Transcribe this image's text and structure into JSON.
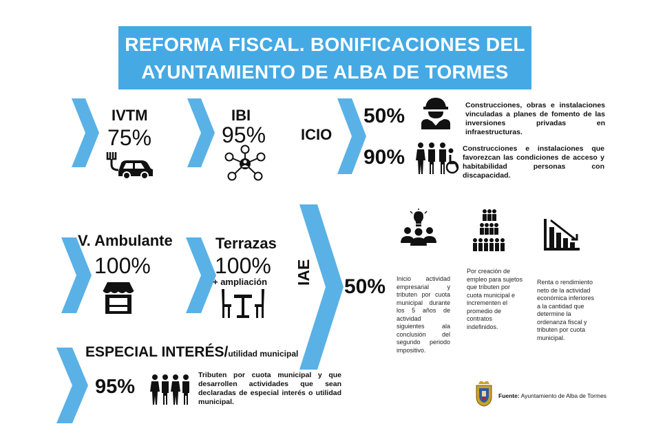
{
  "title": {
    "line1": "REFORMA FISCAL. BONIFICACIONES DEL",
    "line2": "AYUNTAMIENTO DE ALBA DE TORMES"
  },
  "ivtm": {
    "label": "IVTM",
    "value": "75%",
    "icon": "electric-car-icon"
  },
  "ibi": {
    "label": "IBI",
    "value": "95%",
    "icon": "network-people-icon"
  },
  "icio": {
    "label": "ICIO",
    "items": [
      {
        "value": "50%",
        "icon": "construction-worker-icon",
        "text": "Construcciones, obras e instalaciones vinculadas a planes de fomento de las inversiones privadas en infraestructuras."
      },
      {
        "value": "90%",
        "icon": "accessibility-people-icon",
        "text": "Construcciones e instalaciones que favorezcan las condiciones de acceso y habitabilidad personas con discapacidad."
      }
    ]
  },
  "ambulante": {
    "label": "V. Ambulante",
    "value": "100%",
    "icon": "market-stall-icon"
  },
  "terrazas": {
    "label": "Terrazas",
    "value": "100%",
    "extra": "+ ampliación",
    "icon": "terrace-table-icon"
  },
  "iae": {
    "label": "IAE",
    "value": "50%",
    "items": [
      {
        "icon": "idea-team-icon",
        "text": "Inicio actividad empresarial y tributen por cuota municipal durante los 5 años de actividad siguientes ala conclusión del segundo periodo impositivo."
      },
      {
        "icon": "employee-pyramid-icon",
        "text": "Por creación de empleo para sujetos que tributen por cuota municipal e incrementen el promedio de contratos indefinidos."
      },
      {
        "icon": "declining-chart-icon",
        "text": "Renta o rendimiento neto de la actividad económica inferiores a la cantidad que determine la ordenanza fiscal y tributen por cuota municipal."
      }
    ]
  },
  "especial": {
    "label": "ESPECIAL INTERÉS/",
    "label_small": "utilidad municipal",
    "value": "95%",
    "icon": "group-people-icon",
    "text": "Tributen por cuota municipal y que desarrollen actividades que sean declaradas de especial interés o utilidad municipal."
  },
  "source": {
    "label": "Fuente:",
    "text": "Ayuntamiento de Alba de Tormes",
    "icon": "coat-of-arms-icon"
  },
  "colors": {
    "accent": "#45a9e4",
    "chevron": "#5ab1e6",
    "text": "#111111"
  }
}
